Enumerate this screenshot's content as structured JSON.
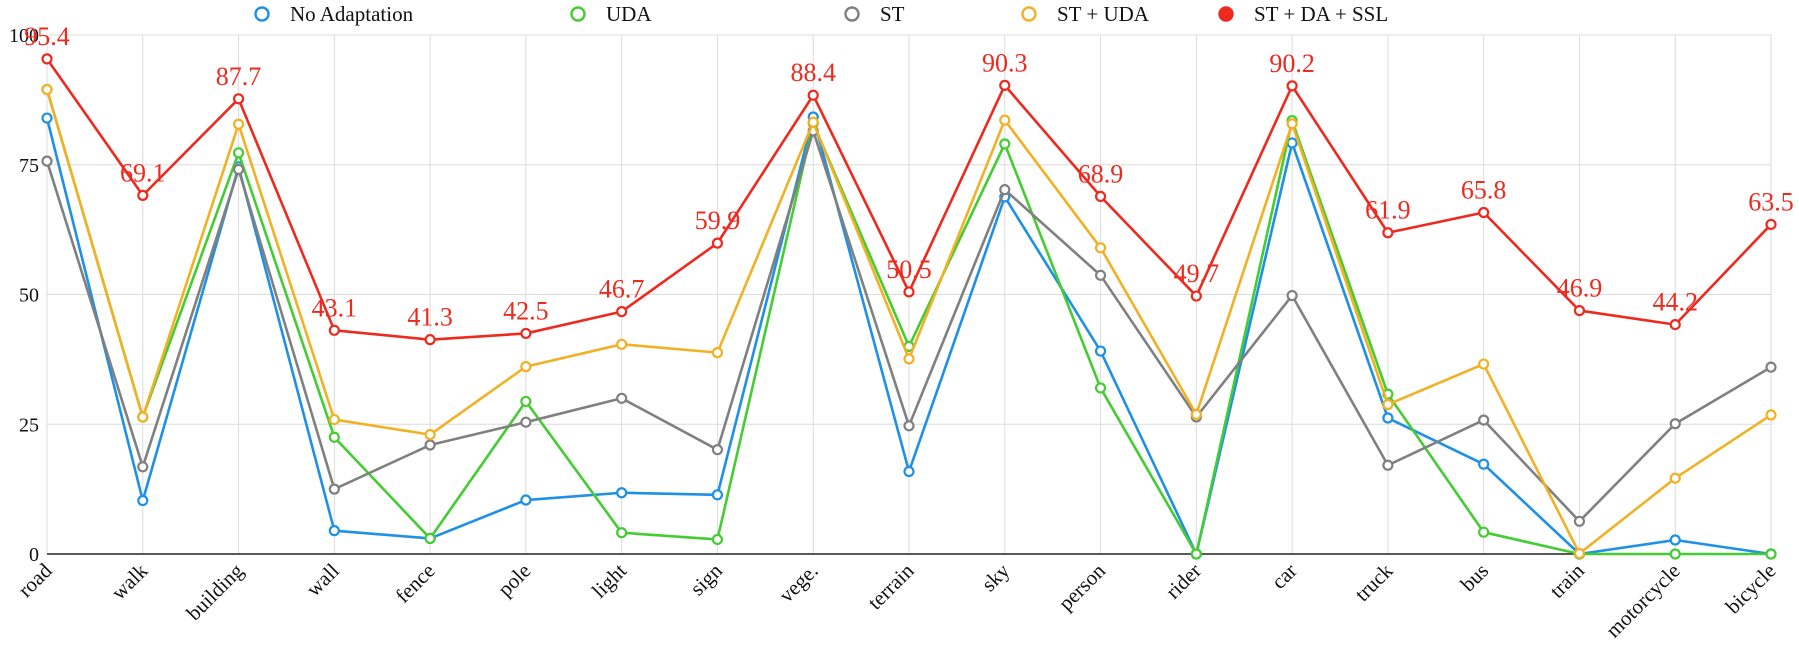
{
  "chart_data": {
    "type": "line",
    "title": "",
    "xlabel": "",
    "ylabel": "",
    "ylim": [
      0,
      100
    ],
    "yticks": [
      "0",
      "25",
      "50",
      "75",
      "100"
    ],
    "grid": true,
    "legend_position": "top",
    "categories": [
      "road",
      "walk",
      "building",
      "wall",
      "fence",
      "pole",
      "light",
      "sign",
      "vege.",
      "terrain",
      "sky",
      "person",
      "rider",
      "car",
      "truck",
      "bus",
      "train",
      "motorcycle",
      "bicycle"
    ],
    "series": [
      {
        "name": "No Adaptation",
        "color": "#1e90e8",
        "values": [
          84.0,
          10.3,
          74.6,
          4.5,
          3.0,
          10.4,
          11.8,
          11.4,
          84.2,
          15.9,
          68.8,
          39.1,
          0.0,
          79.2,
          26.2,
          17.3,
          0.0,
          2.7,
          0.0
        ]
      },
      {
        "name": "UDA",
        "color": "#44cc33",
        "values": [
          89.5,
          26.4,
          77.3,
          22.5,
          3.0,
          29.4,
          4.1,
          2.8,
          83.0,
          40.0,
          79.0,
          32.0,
          0.0,
          83.5,
          30.8,
          4.2,
          0.0,
          0.0,
          0.0
        ]
      },
      {
        "name": "ST",
        "color": "#808080",
        "values": [
          75.7,
          16.8,
          74.1,
          12.5,
          21.0,
          25.4,
          30.0,
          20.1,
          81.5,
          24.7,
          70.2,
          53.7,
          26.4,
          49.8,
          17.1,
          25.8,
          6.3,
          25.1,
          36.0
        ]
      },
      {
        "name": "ST + UDA",
        "color": "#f2b124",
        "values": [
          89.5,
          26.4,
          82.8,
          25.9,
          23.0,
          36.1,
          40.4,
          38.8,
          83.2,
          37.6,
          83.6,
          59.0,
          26.9,
          82.9,
          28.8,
          36.6,
          0.1,
          14.6,
          26.8
        ]
      },
      {
        "name": "ST + DA + SSL",
        "color": "#ee2a1f",
        "values": [
          95.4,
          69.1,
          87.7,
          43.1,
          41.3,
          42.5,
          46.7,
          59.9,
          88.4,
          50.5,
          90.3,
          68.9,
          49.7,
          90.2,
          61.9,
          65.8,
          46.9,
          44.2,
          63.5
        ]
      }
    ],
    "data_labels": {
      "series": "ST + DA + SSL",
      "color": "#ee2a1f",
      "labels": [
        "95.4",
        "69.1",
        "87.7",
        "43.1",
        "41.3",
        "42.5",
        "46.7",
        "59.9",
        "88.4",
        "50.5",
        "90.3",
        "68.9",
        "49.7",
        "90.2",
        "61.9",
        "65.8",
        "46.9",
        "44.2",
        "63.5"
      ]
    }
  }
}
